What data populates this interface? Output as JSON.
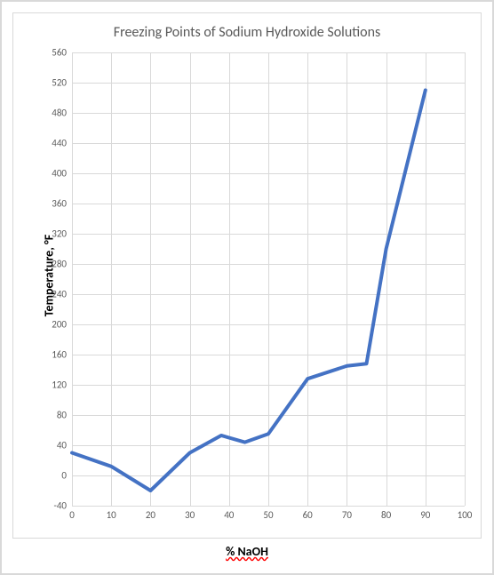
{
  "chart": {
    "type": "line",
    "title": "Freezing Points of Sodium Hydroxide Solutions",
    "title_fontsize": 16,
    "title_color": "#595959",
    "ylabel": "Temperature, °F",
    "ylabel_fontsize": 14,
    "ylabel_fontweight": "bold",
    "xlabel": "% NaOH",
    "xlabel_fontsize": 14,
    "xlabel_fontweight": "bold",
    "xlabel_underline_wavy_color": "#ff0000",
    "xlim": [
      0,
      100
    ],
    "ylim": [
      -40,
      560
    ],
    "xtick_step": 10,
    "ytick_step": 40,
    "xticks": [
      0,
      10,
      20,
      30,
      40,
      50,
      60,
      70,
      80,
      90,
      100
    ],
    "yticks": [
      -40,
      0,
      40,
      80,
      120,
      160,
      200,
      240,
      280,
      320,
      360,
      400,
      440,
      480,
      520,
      560
    ],
    "grid_color": "#d9d9d9",
    "background_color": "#ffffff",
    "border_color": "#d9d9d9",
    "tick_label_fontsize": 11,
    "tick_label_color": "#595959",
    "line_color": "#4472c4",
    "line_width": 4,
    "series": {
      "x": [
        0,
        10,
        20,
        30,
        38,
        44,
        50,
        60,
        70,
        75,
        80,
        90
      ],
      "y": [
        30,
        12,
        -20,
        30,
        53,
        44,
        55,
        128,
        145,
        148,
        300,
        510
      ]
    }
  }
}
